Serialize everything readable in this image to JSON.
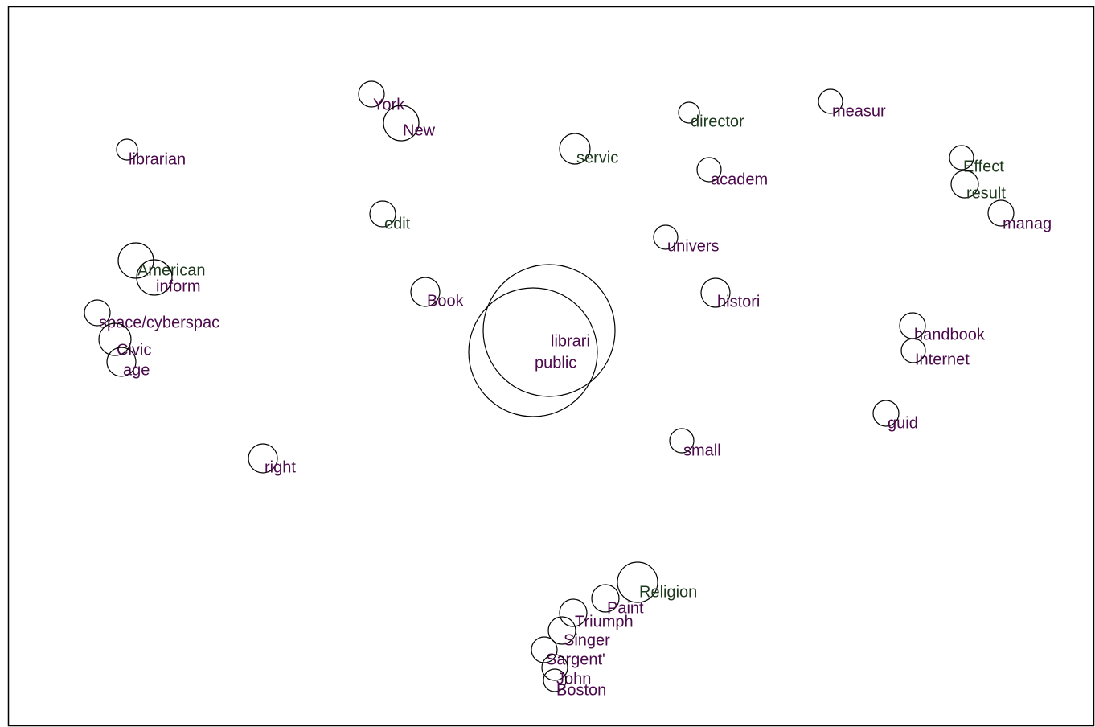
{
  "nodes": [
    {
      "label": "York"
    },
    {
      "label": "New"
    },
    {
      "label": "librarian"
    },
    {
      "label": "director"
    },
    {
      "label": "measur"
    },
    {
      "label": "servic"
    },
    {
      "label": "academ"
    },
    {
      "label": "Effect"
    },
    {
      "label": "result"
    },
    {
      "label": "manag"
    },
    {
      "label": "edit"
    },
    {
      "label": "univers"
    },
    {
      "label": "American"
    },
    {
      "label": "inform"
    },
    {
      "label": "Book"
    },
    {
      "label": "histori"
    },
    {
      "label": "librari"
    },
    {
      "label": "public"
    },
    {
      "label": "space/cyberspac"
    },
    {
      "label": "Civic"
    },
    {
      "label": "age"
    },
    {
      "label": "handbook"
    },
    {
      "label": "Internet"
    },
    {
      "label": "guid"
    },
    {
      "label": "small"
    },
    {
      "label": "right"
    },
    {
      "label": "Religion"
    },
    {
      "label": "Paint"
    },
    {
      "label": "Triumph"
    },
    {
      "label": "Singer"
    },
    {
      "label": "Sargent'"
    },
    {
      "label": "John"
    },
    {
      "label": "Boston"
    }
  ]
}
